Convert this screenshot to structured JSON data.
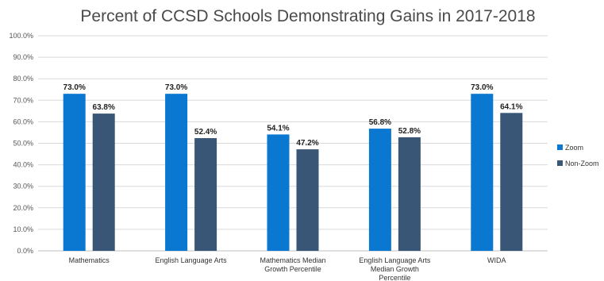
{
  "chart_data": {
    "type": "bar",
    "title": "Percent of CCSD Schools Demonstrating Gains in 2017-2018",
    "xlabel": "",
    "ylabel": "",
    "ylim": [
      0,
      100
    ],
    "yticks": [
      "0.0%",
      "10.0%",
      "20.0%",
      "30.0%",
      "40.0%",
      "50.0%",
      "60.0%",
      "70.0%",
      "80.0%",
      "90.0%",
      "100.0%"
    ],
    "grid": true,
    "legend_position": "right",
    "categories": [
      [
        "Mathematics"
      ],
      [
        "English Language Arts"
      ],
      [
        "Mathematics Median",
        "Growth Percentile"
      ],
      [
        "English Language Arts",
        "Median Growth",
        "Percentile"
      ],
      [
        "WIDA"
      ]
    ],
    "series": [
      {
        "name": "Zoom",
        "color": "#0a77d1",
        "values": [
          73.0,
          73.0,
          54.1,
          56.8,
          73.0
        ],
        "labels": [
          "73.0%",
          "73.0%",
          "54.1%",
          "56.8%",
          "73.0%"
        ]
      },
      {
        "name": "Non-Zoom",
        "color": "#3a5677",
        "values": [
          63.8,
          52.4,
          47.2,
          52.8,
          64.1
        ],
        "labels": [
          "63.8%",
          "52.4%",
          "47.2%",
          "52.8%",
          "64.1%"
        ]
      }
    ]
  }
}
